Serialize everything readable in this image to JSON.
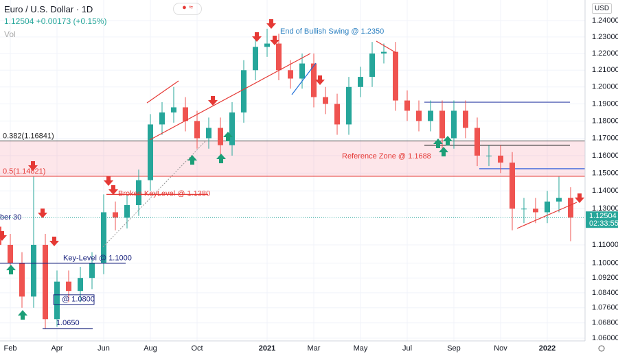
{
  "header": {
    "symbol": "Euro / U.S. Dollar · 1D",
    "quote": "+0.00173 (+0.15%)",
    "vol": "Vol",
    "currency": "USD",
    "countdown": "02:33:55"
  },
  "chart_data": {
    "type": "candlestick",
    "log": true,
    "grid": true,
    "up_color": "#26a69a",
    "down_color": "#ef5350",
    "last_price": 1.12504,
    "categories": [
      null,
      "Feb",
      null,
      null,
      null,
      "Apr",
      null,
      null,
      null,
      "Jun",
      null,
      null,
      null,
      "Aug",
      null,
      null,
      null,
      "Oct",
      null,
      null,
      null,
      null,
      null,
      "2021",
      null,
      null,
      null,
      "Mar",
      null,
      null,
      null,
      "May",
      null,
      null,
      null,
      "Jul",
      null,
      null,
      null,
      "Sep",
      null,
      null,
      null,
      "Nov",
      null,
      null,
      null,
      "2022",
      null,
      null
    ],
    "open": [
      1.12,
      1.11,
      1.1,
      1.082,
      1.11,
      1.07,
      1.09,
      1.085,
      1.092,
      1.1,
      1.128,
      1.125,
      1.132,
      1.146,
      1.178,
      1.185,
      1.188,
      1.18,
      1.17,
      1.176,
      1.166,
      1.185,
      1.21,
      1.224,
      1.226,
      1.21,
      1.205,
      1.214,
      1.194,
      1.19,
      1.178,
      1.2,
      1.206,
      1.22,
      1.221,
      1.192,
      1.186,
      1.18,
      1.186,
      1.17,
      1.186,
      1.176,
      1.16,
      1.16,
      1.156,
      1.13,
      1.13,
      1.128,
      1.134,
      1.136
    ],
    "high": [
      1.126,
      1.116,
      1.106,
      1.148,
      1.116,
      1.096,
      1.096,
      1.098,
      1.106,
      1.138,
      1.134,
      1.138,
      1.152,
      1.184,
      1.191,
      1.2,
      1.194,
      1.186,
      1.182,
      1.182,
      1.191,
      1.216,
      1.23,
      1.235,
      1.232,
      1.216,
      1.22,
      1.22,
      1.2,
      1.196,
      1.206,
      1.212,
      1.227,
      1.226,
      1.227,
      1.198,
      1.192,
      1.192,
      1.192,
      1.192,
      1.192,
      1.182,
      1.166,
      1.166,
      1.162,
      1.136,
      1.136,
      1.14,
      1.148,
      1.142
    ],
    "low": [
      1.104,
      1.094,
      1.076,
      1.076,
      1.065,
      1.066,
      1.079,
      1.079,
      1.086,
      1.094,
      1.118,
      1.119,
      1.126,
      1.14,
      1.172,
      1.179,
      1.174,
      1.164,
      1.164,
      1.16,
      1.16,
      1.179,
      1.204,
      1.218,
      1.204,
      1.199,
      1.199,
      1.188,
      1.184,
      1.172,
      1.172,
      1.194,
      1.2,
      1.214,
      1.186,
      1.18,
      1.174,
      1.174,
      1.164,
      1.164,
      1.17,
      1.154,
      1.154,
      1.15,
      1.118,
      1.122,
      1.122,
      1.122,
      1.128,
      1.112
    ],
    "close": [
      1.11,
      1.1,
      1.082,
      1.11,
      1.07,
      1.09,
      1.085,
      1.092,
      1.1,
      1.128,
      1.125,
      1.132,
      1.146,
      1.178,
      1.185,
      1.188,
      1.18,
      1.17,
      1.176,
      1.166,
      1.185,
      1.21,
      1.224,
      1.226,
      1.21,
      1.205,
      1.214,
      1.194,
      1.19,
      1.178,
      1.2,
      1.206,
      1.22,
      1.221,
      1.192,
      1.186,
      1.18,
      1.186,
      1.17,
      1.186,
      1.176,
      1.16,
      1.16,
      1.156,
      1.13,
      1.13,
      1.128,
      1.134,
      1.136,
      1.125
    ],
    "ylim": [
      1.06,
      1.24
    ],
    "yticks": [
      {
        "value": 1.24,
        "label": "1.24000"
      },
      {
        "value": 1.23,
        "label": "1.23000"
      },
      {
        "value": 1.22,
        "label": "1.22000"
      },
      {
        "value": 1.21,
        "label": "1.21000"
      },
      {
        "value": 1.2,
        "label": "1.20000"
      },
      {
        "value": 1.19,
        "label": "1.19000"
      },
      {
        "value": 1.18,
        "label": "1.18000"
      },
      {
        "value": 1.17,
        "label": "1.17000"
      },
      {
        "value": 1.16,
        "label": "1.16000"
      },
      {
        "value": 1.15,
        "label": "1.15000"
      },
      {
        "value": 1.14,
        "label": "1.14000"
      },
      {
        "value": 1.13,
        "label": "1.13000"
      },
      {
        "value": 1.11,
        "label": "1.11000"
      },
      {
        "value": 1.1,
        "label": "1.10000"
      },
      {
        "value": 1.092,
        "label": "1.09200"
      },
      {
        "value": 1.084,
        "label": "1.08400"
      },
      {
        "value": 1.076,
        "label": "1.07600"
      },
      {
        "value": 1.068,
        "label": "1.06800"
      },
      {
        "value": 1.06,
        "label": "1.06000"
      }
    ],
    "fib": [
      {
        "label": "0.382(1.16841)",
        "value": 1.16841
      },
      {
        "label": "0.5(1.14821)",
        "value": 1.14821
      }
    ],
    "levels": [
      1.191,
      1.166,
      1.1525
    ],
    "annotations": [
      {
        "text": "End of Bullish Swing @ 1.2350"
      },
      {
        "text": "Reference Zone @ 1.1688"
      },
      {
        "text": "Broken KeyLevel @ 1.1380",
        "level": 1.138
      },
      {
        "text": "Key-Level @ 1.1000",
        "level": 1.1
      },
      {
        "text": "@ 1.0800",
        "level": 1.08
      },
      {
        "text": "1.0650",
        "level": 1.065
      },
      {
        "text": "ber 30"
      }
    ]
  }
}
